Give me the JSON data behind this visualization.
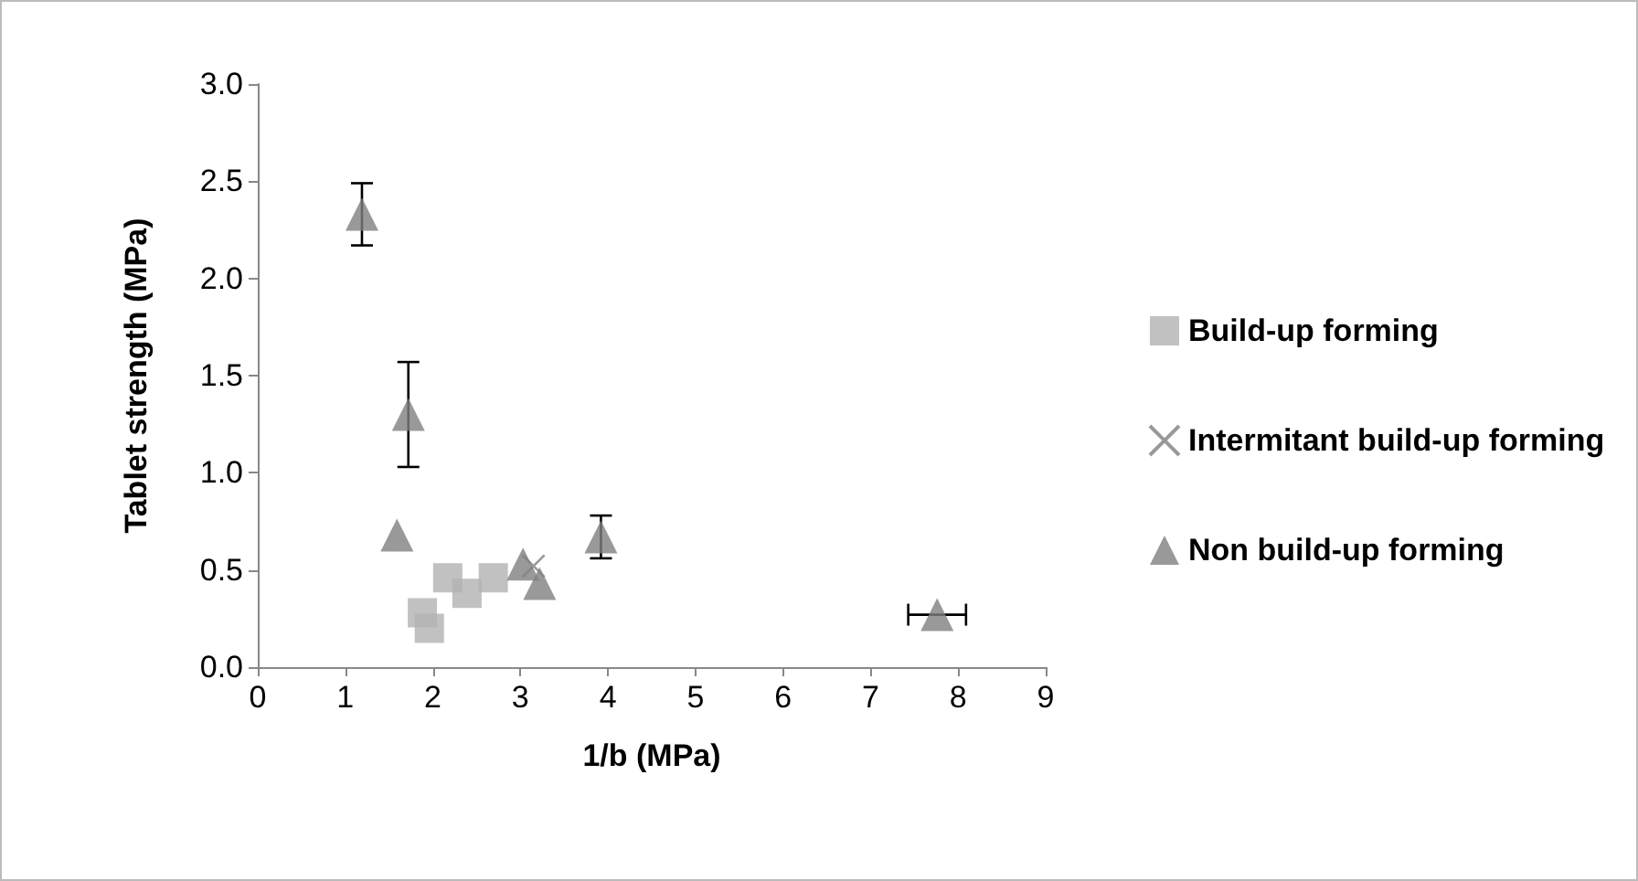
{
  "chart_data": {
    "type": "scatter",
    "xlabel": "1/b (MPa)",
    "ylabel": "Tablet strength (MPa)",
    "xlim": [
      0,
      9
    ],
    "xticks": [
      0,
      1,
      2,
      3,
      4,
      5,
      6,
      7,
      8,
      9
    ],
    "ylim": [
      0,
      3
    ],
    "yticks": [
      {
        "value": 0,
        "label": "0.0"
      },
      {
        "value": 0.5,
        "label": "0.5"
      },
      {
        "value": 1,
        "label": "1.0"
      },
      {
        "value": 1.5,
        "label": "1.5"
      },
      {
        "value": 2,
        "label": "2.0"
      },
      {
        "value": 2.5,
        "label": "2.5"
      },
      {
        "value": 3,
        "label": "3.0"
      }
    ],
    "grid": false,
    "legend": "right",
    "series": [
      {
        "name": "Build-up forming",
        "color": "#b2b2b2",
        "marker": "square",
        "x": [
          1.88,
          1.96,
          2.17,
          2.39,
          2.69
        ],
        "values": [
          0.28,
          0.2,
          0.46,
          0.38,
          0.46
        ]
      },
      {
        "name": "Intermitant build-up forming",
        "color": "#808080",
        "marker": "cross",
        "x": [
          3.15
        ],
        "values": [
          0.52
        ]
      },
      {
        "name": "Non build-up forming",
        "color": "#7f7f7f",
        "marker": "triangle",
        "x": [
          1.19,
          1.72,
          1.59,
          3.03,
          3.22,
          3.92,
          7.76
        ],
        "values": [
          2.33,
          1.3,
          0.68,
          0.53,
          0.43,
          0.67,
          0.27
        ],
        "errors": [
          0.16,
          0.27,
          null,
          null,
          null,
          0.11,
          null
        ],
        "xerrors": [
          null,
          null,
          null,
          null,
          null,
          null,
          0.33
        ]
      }
    ]
  }
}
